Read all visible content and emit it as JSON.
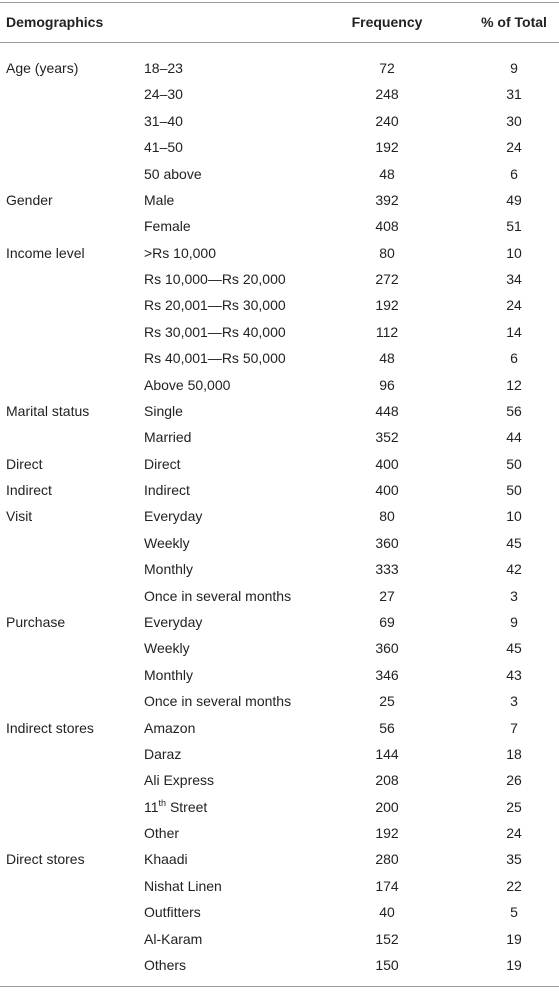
{
  "table": {
    "header": [
      "Demographics",
      "Frequency",
      "% of Total"
    ],
    "rows": [
      [
        "Age (years)",
        "18–23",
        72,
        9
      ],
      [
        null,
        "24–30",
        248,
        31
      ],
      [
        null,
        "31–40",
        240,
        30
      ],
      [
        null,
        "41–50",
        192,
        24
      ],
      [
        null,
        "50 above",
        48,
        6
      ],
      [
        "Gender",
        "Male",
        392,
        49
      ],
      [
        null,
        "Female",
        408,
        51
      ],
      [
        "Income level",
        ">Rs 10,000",
        80,
        10
      ],
      [
        null,
        "Rs 10,000—Rs 20,000",
        272,
        34
      ],
      [
        null,
        "Rs 20,001—Rs 30,000",
        192,
        24
      ],
      [
        null,
        "Rs 30,001—Rs 40,000",
        112,
        14
      ],
      [
        null,
        "Rs 40,001—Rs 50,000",
        48,
        6
      ],
      [
        null,
        "Above 50,000",
        96,
        12
      ],
      [
        "Marital status",
        "Single",
        448,
        56
      ],
      [
        null,
        "Married",
        352,
        44
      ],
      [
        "Direct",
        "Direct",
        400,
        50
      ],
      [
        "Indirect",
        "Indirect",
        400,
        50
      ],
      [
        "Visit",
        "Everyday",
        80,
        10
      ],
      [
        null,
        "Weekly",
        360,
        45
      ],
      [
        null,
        "Monthly",
        333,
        42
      ],
      [
        null,
        "Once in several months",
        27,
        3
      ],
      [
        "Purchase",
        "Everyday",
        69,
        9
      ],
      [
        null,
        "Weekly",
        360,
        45
      ],
      [
        null,
        "Monthly",
        346,
        43
      ],
      [
        null,
        "Once in several months",
        25,
        3
      ],
      [
        "Indirect stores",
        "Amazon",
        56,
        7
      ],
      [
        null,
        "Daraz",
        144,
        18
      ],
      [
        null,
        "Ali Express",
        208,
        26
      ],
      [
        null,
        {
          "base": "11",
          "sup": "th",
          "tail": " Street"
        },
        200,
        25
      ],
      [
        null,
        "Other",
        192,
        24
      ],
      [
        "Direct stores",
        "Khaadi",
        280,
        35
      ],
      [
        null,
        "Nishat Linen",
        174,
        22
      ],
      [
        null,
        "Outfitters",
        40,
        5
      ],
      [
        null,
        "Al-Karam",
        152,
        19
      ],
      [
        null,
        "Others",
        150,
        19
      ]
    ]
  }
}
